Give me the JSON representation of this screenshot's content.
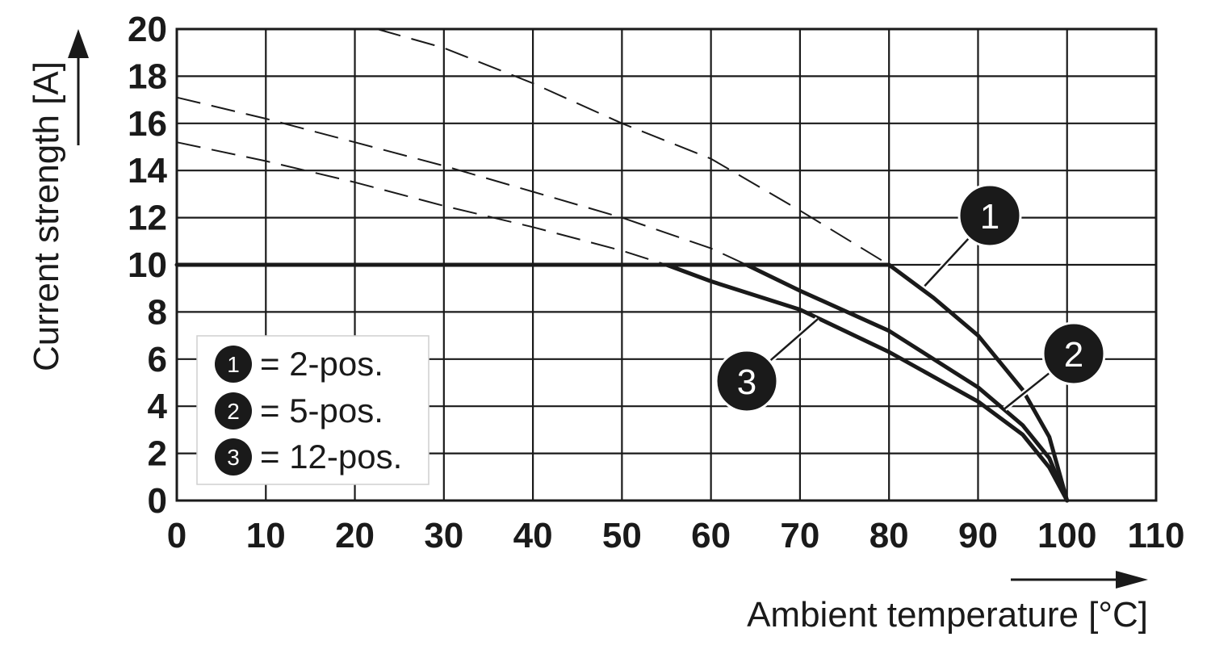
{
  "chart_data": {
    "type": "line",
    "xlabel": "Ambient temperature [°C]",
    "ylabel": "Current strength [A]",
    "xlim": [
      0,
      110
    ],
    "ylim": [
      0,
      20
    ],
    "x_ticks": [
      "0",
      "10",
      "20",
      "30",
      "40",
      "50",
      "60",
      "70",
      "80",
      "90",
      "100",
      "110"
    ],
    "y_ticks": [
      "0",
      "2",
      "4",
      "6",
      "8",
      "10",
      "12",
      "14",
      "16",
      "18",
      "20"
    ],
    "grid": true,
    "legend": {
      "placement": "lower-left",
      "entries": [
        {
          "marker": "1",
          "text": "= 2-pos."
        },
        {
          "marker": "2",
          "text": "= 5-pos."
        },
        {
          "marker": "3",
          "text": "= 12-pos."
        }
      ]
    },
    "series": [
      {
        "marker": "1",
        "line_style": "solid",
        "points": [
          [
            0,
            10
          ],
          [
            80,
            10
          ],
          [
            85,
            8.6
          ],
          [
            90,
            7
          ],
          [
            95,
            4.7
          ],
          [
            98,
            2.7
          ],
          [
            100,
            0
          ]
        ]
      },
      {
        "marker": "2",
        "line_style": "solid",
        "points": [
          [
            64,
            10
          ],
          [
            70,
            8.9
          ],
          [
            80,
            7.2
          ],
          [
            90,
            4.8
          ],
          [
            95,
            3.2
          ],
          [
            98,
            1.8
          ],
          [
            100,
            0
          ]
        ]
      },
      {
        "marker": "3",
        "line_style": "solid",
        "points": [
          [
            55,
            10
          ],
          [
            60,
            9.3
          ],
          [
            70,
            8.1
          ],
          [
            80,
            6.3
          ],
          [
            90,
            4.2
          ],
          [
            95,
            2.8
          ],
          [
            98,
            1.4
          ],
          [
            100,
            0
          ]
        ]
      },
      {
        "marker": "1",
        "line_style": "dashed",
        "points": [
          [
            22.5,
            20
          ],
          [
            30,
            19.2
          ],
          [
            40,
            17.7
          ],
          [
            50,
            16.0
          ],
          [
            60,
            14.5
          ],
          [
            70,
            12.3
          ],
          [
            80,
            10
          ]
        ]
      },
      {
        "marker": "2",
        "line_style": "dashed",
        "points": [
          [
            0,
            17.1
          ],
          [
            10,
            16.2
          ],
          [
            20,
            15.2
          ],
          [
            30,
            14.2
          ],
          [
            40,
            13.1
          ],
          [
            50,
            12.0
          ],
          [
            60,
            10.7
          ],
          [
            64,
            10
          ]
        ]
      },
      {
        "marker": "3",
        "line_style": "dashed",
        "points": [
          [
            0,
            15.2
          ],
          [
            10,
            14.4
          ],
          [
            20,
            13.5
          ],
          [
            30,
            12.5
          ],
          [
            40,
            11.6
          ],
          [
            50,
            10.6
          ],
          [
            55,
            10
          ]
        ]
      }
    ],
    "callouts": [
      {
        "label": "1",
        "target": [
          84,
          9.1
        ]
      },
      {
        "label": "2",
        "target": [
          93,
          3.9
        ]
      },
      {
        "label": "3",
        "target": [
          72,
          7.7
        ]
      }
    ]
  }
}
